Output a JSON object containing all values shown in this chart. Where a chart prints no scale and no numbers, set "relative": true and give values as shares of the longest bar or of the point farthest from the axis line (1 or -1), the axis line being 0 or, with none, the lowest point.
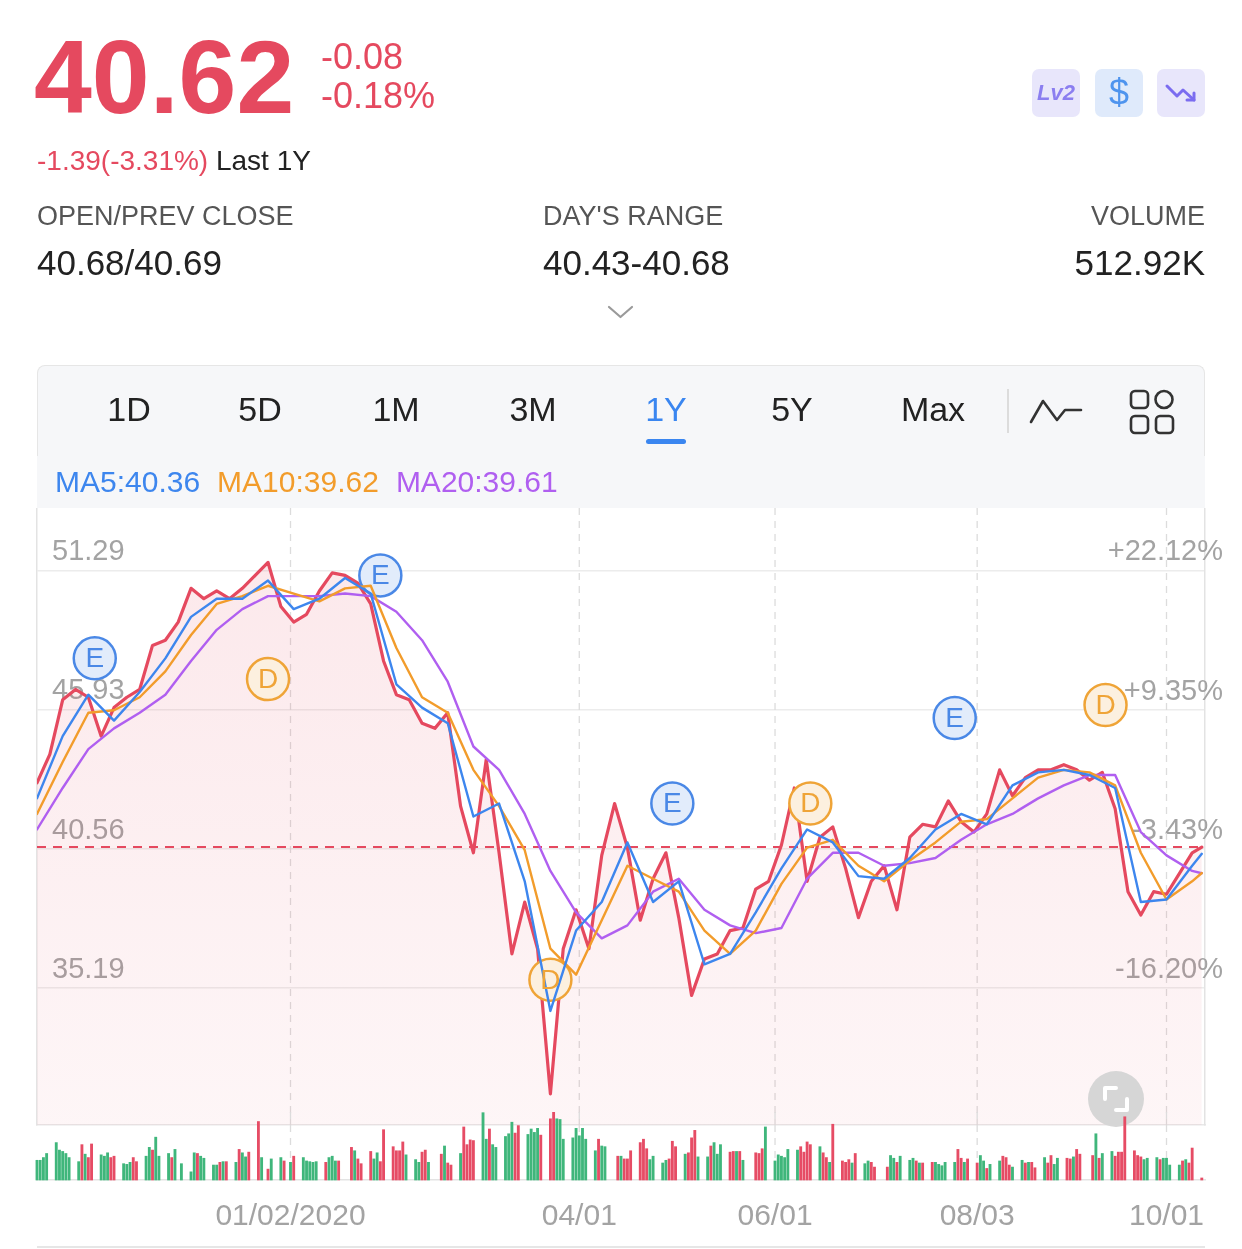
{
  "chart_data": [
    {
      "type": "other",
      "title": "40.62",
      "annotations": [
        "-0.08",
        "-0.18%",
        "-1.39(-3.31%)",
        "Last 1Y",
        "Lv2",
        "$",
        "OPEN/PREV CLOSE",
        "40.68/40.69",
        "DAY'S RANGE",
        "40.43-40.68",
        "VOLUME",
        "512.92K",
        "1D",
        "5D",
        "1M",
        "3M",
        "1Y",
        "5Y",
        "Max"
      ]
    },
    {
      "type": "line",
      "legend": "top left",
      "grid": true,
      "xlim": [
        "2019-10-15",
        "2020-10-13"
      ],
      "xticks": [
        {
          "value": "2020-01-02",
          "label": "01/02/2020"
        },
        {
          "value": "2020-04-01",
          "label": "04/01"
        },
        {
          "value": "2020-06-01",
          "label": "06/01"
        },
        {
          "value": "2020-08-03",
          "label": "08/03"
        },
        {
          "value": "2020-10-01",
          "label": "10/01"
        }
      ],
      "ylim": [
        29.9,
        53.7
      ],
      "yticks": [
        35.19,
        40.56,
        45.93,
        51.29
      ],
      "y2lim": [
        -28.81,
        27.86
      ],
      "y2ticks": [
        {
          "value": -16.2,
          "label": "-16.20%"
        },
        {
          "value": -3.43,
          "label": "-3.43%"
        },
        {
          "value": 9.35,
          "label": "+9.35%"
        },
        {
          "value": 22.12,
          "label": "+22.12%"
        }
      ],
      "ref_lines": [
        {
          "axis": "y",
          "value": 40.62,
          "color": "#e5495f",
          "line_style": "dashed"
        }
      ],
      "x": [
        "2019-10-15",
        "2019-10-23",
        "2019-10-31",
        "2019-11-08",
        "2019-11-16",
        "2019-11-24",
        "2019-12-02",
        "2019-12-10",
        "2019-12-18",
        "2019-12-26",
        "2020-01-03",
        "2020-01-11",
        "2020-01-19",
        "2020-01-27",
        "2020-02-04",
        "2020-02-12",
        "2020-02-20",
        "2020-02-28",
        "2020-03-07",
        "2020-03-15",
        "2020-03-23",
        "2020-03-31",
        "2020-04-08",
        "2020-04-16",
        "2020-04-24",
        "2020-05-02",
        "2020-05-10",
        "2020-05-18",
        "2020-05-26",
        "2020-06-03",
        "2020-06-11",
        "2020-06-19",
        "2020-06-27",
        "2020-07-05",
        "2020-07-13",
        "2020-07-21",
        "2020-07-29",
        "2020-08-06",
        "2020-08-14",
        "2020-08-22",
        "2020-08-30",
        "2020-09-07",
        "2020-09-15",
        "2020-09-23",
        "2020-10-01",
        "2020-10-09",
        "2020-10-12"
      ],
      "series": [
        {
          "type": "area",
          "color": "#e5495f",
          "x": [
            "2019-10-15",
            "2019-10-19",
            "2019-10-23",
            "2019-10-27",
            "2019-10-31",
            "2019-11-04",
            "2019-11-08",
            "2019-11-12",
            "2019-11-16",
            "2019-11-20",
            "2019-11-24",
            "2019-11-28",
            "2019-12-02",
            "2019-12-06",
            "2019-12-10",
            "2019-12-14",
            "2019-12-18",
            "2019-12-22",
            "2019-12-26",
            "2019-12-30",
            "2020-01-03",
            "2020-01-07",
            "2020-01-11",
            "2020-01-15",
            "2020-01-19",
            "2020-01-23",
            "2020-01-27",
            "2020-01-31",
            "2020-02-04",
            "2020-02-08",
            "2020-02-12",
            "2020-02-16",
            "2020-02-20",
            "2020-02-24",
            "2020-02-28",
            "2020-03-03",
            "2020-03-07",
            "2020-03-11",
            "2020-03-15",
            "2020-03-19",
            "2020-03-23",
            "2020-03-27",
            "2020-03-31",
            "2020-04-04",
            "2020-04-08",
            "2020-04-12",
            "2020-04-16",
            "2020-04-20",
            "2020-04-24",
            "2020-04-28",
            "2020-05-02",
            "2020-05-06",
            "2020-05-10",
            "2020-05-14",
            "2020-05-18",
            "2020-05-22",
            "2020-05-26",
            "2020-05-30",
            "2020-06-03",
            "2020-06-07",
            "2020-06-11",
            "2020-06-15",
            "2020-06-19",
            "2020-06-23",
            "2020-06-27",
            "2020-07-01",
            "2020-07-05",
            "2020-07-09",
            "2020-07-13",
            "2020-07-17",
            "2020-07-21",
            "2020-07-25",
            "2020-07-29",
            "2020-08-02",
            "2020-08-06",
            "2020-08-10",
            "2020-08-14",
            "2020-08-18",
            "2020-08-22",
            "2020-08-26",
            "2020-08-30",
            "2020-09-03",
            "2020-09-07",
            "2020-09-11",
            "2020-09-15",
            "2020-09-19",
            "2020-09-23",
            "2020-09-27",
            "2020-10-01",
            "2020-10-05",
            "2020-10-09",
            "2020-10-12"
          ],
          "values": [
            43.1,
            44.2,
            46.3,
            46.7,
            46.4,
            44.9,
            46.0,
            46.4,
            46.7,
            48.4,
            48.6,
            49.3,
            50.6,
            50.2,
            50.5,
            50.2,
            50.6,
            51.1,
            51.6,
            49.9,
            49.3,
            49.6,
            50.5,
            51.2,
            51.1,
            50.8,
            50.0,
            47.8,
            46.5,
            46.3,
            45.4,
            45.2,
            45.8,
            42.2,
            40.4,
            44.0,
            40.4,
            36.5,
            38.5,
            36.7,
            31.1,
            36.7,
            38.2,
            36.7,
            40.3,
            42.3,
            40.6,
            37.8,
            39.4,
            40.4,
            37.9,
            34.9,
            36.3,
            36.5,
            37.4,
            37.5,
            39.0,
            39.3,
            40.7,
            42.9,
            39.3,
            41.0,
            41.4,
            39.8,
            37.9,
            39.3,
            39.9,
            38.2,
            41.0,
            41.5,
            41.4,
            42.4,
            41.6,
            41.2,
            41.9,
            43.6,
            42.6,
            43.3,
            43.6,
            43.6,
            43.8,
            43.6,
            43.2,
            43.5,
            42.1,
            38.9,
            38.0,
            38.9,
            38.8,
            39.6,
            40.4,
            40.62
          ]
        },
        {
          "type": "line",
          "name": "MA5:40.36",
          "color": "#3d86ee",
          "values": [
            42.5,
            44.9,
            46.5,
            45.5,
            46.6,
            47.9,
            49.5,
            50.2,
            50.2,
            50.9,
            49.8,
            50.2,
            51.0,
            50.4,
            46.9,
            46.0,
            45.4,
            41.8,
            42.3,
            39.3,
            34.3,
            37.4,
            38.5,
            40.8,
            38.5,
            39.3,
            36.1,
            36.5,
            38.1,
            39.8,
            41.3,
            40.8,
            39.5,
            39.4,
            40.2,
            41.3,
            41.9,
            41.5,
            43.0,
            43.5,
            43.6,
            43.4,
            42.9,
            38.5,
            38.6,
            39.9,
            40.36
          ]
        },
        {
          "type": "line",
          "name": "MA10:39.62",
          "color": "#f29c2b",
          "values": [
            41.9,
            43.9,
            45.8,
            45.9,
            46.4,
            47.4,
            48.8,
            50.0,
            50.3,
            50.7,
            50.4,
            50.1,
            50.6,
            50.7,
            48.3,
            46.4,
            45.8,
            43.6,
            42.2,
            40.5,
            36.7,
            35.7,
            37.8,
            39.9,
            39.4,
            38.9,
            37.4,
            36.5,
            37.4,
            39.2,
            40.6,
            40.9,
            39.9,
            39.3,
            40.1,
            40.8,
            41.6,
            41.7,
            42.5,
            43.3,
            43.6,
            43.5,
            43.0,
            40.4,
            38.6,
            39.3,
            39.62
          ]
        },
        {
          "type": "line",
          "name": "MA20:39.61",
          "color": "#b05ff0",
          "values": [
            41.3,
            42.9,
            44.4,
            45.2,
            45.8,
            46.5,
            47.8,
            49.0,
            49.8,
            50.3,
            50.3,
            50.3,
            50.4,
            50.3,
            49.7,
            48.6,
            47.0,
            44.5,
            43.6,
            41.9,
            39.7,
            38.1,
            37.1,
            37.6,
            38.9,
            39.4,
            38.2,
            37.6,
            37.3,
            37.5,
            39.4,
            40.4,
            40.4,
            39.9,
            40.0,
            40.2,
            40.9,
            41.5,
            41.9,
            42.5,
            43.0,
            43.4,
            43.4,
            41.2,
            40.3,
            39.7,
            39.61
          ]
        },
        {
          "type": "scatter",
          "marker": "circle",
          "color": "#4a88e6",
          "x": [
            "2019-11-02",
            "2020-01-30",
            "2020-04-30",
            "2020-07-27"
          ],
          "values": [
            47.9,
            51.1,
            42.3,
            45.6
          ],
          "value_labels": [
            "E",
            "E",
            "E",
            "E"
          ]
        },
        {
          "type": "scatter",
          "marker": "circle",
          "color": "#efa437",
          "x": [
            "2019-12-26",
            "2020-03-23",
            "2020-06-12",
            "2020-09-12"
          ],
          "values": [
            47.1,
            35.5,
            42.3,
            46.1
          ],
          "value_labels": [
            "D",
            "D",
            "D",
            "D"
          ]
        }
      ]
    },
    {
      "type": "bar",
      "relative": true,
      "tick_labels": false,
      "grid": "x",
      "xlim": [
        "2019-10-15",
        "2020-10-13"
      ],
      "xticks": [
        {
          "value": "2020-01-02",
          "label": null
        },
        {
          "value": "2020-04-01",
          "label": null
        },
        {
          "value": "2020-06-01",
          "label": null
        },
        {
          "value": "2020-08-03",
          "label": null
        },
        {
          "value": "2020-10-01",
          "label": null
        }
      ],
      "x": [
        "2019-10-15",
        "2019-10-16",
        "2019-10-17",
        "2019-10-18",
        "2019-10-21",
        "2019-10-22",
        "2019-10-23",
        "2019-10-24",
        "2019-10-25",
        "2019-10-28",
        "2019-10-29",
        "2019-10-30",
        "2019-10-31",
        "2019-11-01",
        "2019-11-04",
        "2019-11-05",
        "2019-11-06",
        "2019-11-07",
        "2019-11-08",
        "2019-11-11",
        "2019-11-12",
        "2019-11-13",
        "2019-11-14",
        "2019-11-15",
        "2019-11-18",
        "2019-11-19",
        "2019-11-20",
        "2019-11-21",
        "2019-11-22",
        "2019-11-25",
        "2019-11-26",
        "2019-11-27",
        "2019-11-29",
        "2019-12-02",
        "2019-12-03",
        "2019-12-04",
        "2019-12-05",
        "2019-12-06",
        "2019-12-09",
        "2019-12-10",
        "2019-12-11",
        "2019-12-12",
        "2019-12-13",
        "2019-12-16",
        "2019-12-17",
        "2019-12-18",
        "2019-12-19",
        "2019-12-20",
        "2019-12-23",
        "2019-12-24",
        "2019-12-26",
        "2019-12-27",
        "2019-12-30",
        "2019-12-31",
        "2020-01-02",
        "2020-01-03",
        "2020-01-06",
        "2020-01-07",
        "2020-01-08",
        "2020-01-09",
        "2020-01-10",
        "2020-01-13",
        "2020-01-14",
        "2020-01-15",
        "2020-01-16",
        "2020-01-17",
        "2020-01-21",
        "2020-01-22",
        "2020-01-23",
        "2020-01-24",
        "2020-01-27",
        "2020-01-28",
        "2020-01-29",
        "2020-01-30",
        "2020-01-31",
        "2020-02-03",
        "2020-02-04",
        "2020-02-05",
        "2020-02-06",
        "2020-02-07",
        "2020-02-10",
        "2020-02-11",
        "2020-02-12",
        "2020-02-13",
        "2020-02-14",
        "2020-02-18",
        "2020-02-19",
        "2020-02-20",
        "2020-02-21",
        "2020-02-24",
        "2020-02-25",
        "2020-02-26",
        "2020-02-27",
        "2020-02-28",
        "2020-03-02",
        "2020-03-03",
        "2020-03-04",
        "2020-03-05",
        "2020-03-06",
        "2020-03-09",
        "2020-03-10",
        "2020-03-11",
        "2020-03-12",
        "2020-03-13",
        "2020-03-16",
        "2020-03-17",
        "2020-03-18",
        "2020-03-19",
        "2020-03-20",
        "2020-03-23",
        "2020-03-24",
        "2020-03-25",
        "2020-03-26",
        "2020-03-27",
        "2020-03-30",
        "2020-03-31",
        "2020-04-01",
        "2020-04-02",
        "2020-04-03",
        "2020-04-06",
        "2020-04-07",
        "2020-04-08",
        "2020-04-09",
        "2020-04-13",
        "2020-04-14",
        "2020-04-15",
        "2020-04-16",
        "2020-04-17",
        "2020-04-20",
        "2020-04-21",
        "2020-04-22",
        "2020-04-23",
        "2020-04-24",
        "2020-04-27",
        "2020-04-28",
        "2020-04-29",
        "2020-04-30",
        "2020-05-01",
        "2020-05-04",
        "2020-05-05",
        "2020-05-06",
        "2020-05-07",
        "2020-05-08",
        "2020-05-11",
        "2020-05-12",
        "2020-05-13",
        "2020-05-14",
        "2020-05-15",
        "2020-05-18",
        "2020-05-19",
        "2020-05-20",
        "2020-05-21",
        "2020-05-22",
        "2020-05-26",
        "2020-05-27",
        "2020-05-28",
        "2020-05-29",
        "2020-06-01",
        "2020-06-02",
        "2020-06-03",
        "2020-06-04",
        "2020-06-05",
        "2020-06-08",
        "2020-06-09",
        "2020-06-10",
        "2020-06-11",
        "2020-06-12",
        "2020-06-15",
        "2020-06-16",
        "2020-06-17",
        "2020-06-18",
        "2020-06-19",
        "2020-06-22",
        "2020-06-23",
        "2020-06-24",
        "2020-06-25",
        "2020-06-26",
        "2020-06-29",
        "2020-06-30",
        "2020-07-01",
        "2020-07-02",
        "2020-07-06",
        "2020-07-07",
        "2020-07-08",
        "2020-07-09",
        "2020-07-10",
        "2020-07-13",
        "2020-07-14",
        "2020-07-15",
        "2020-07-16",
        "2020-07-17",
        "2020-07-20",
        "2020-07-21",
        "2020-07-22",
        "2020-07-23",
        "2020-07-24",
        "2020-07-27",
        "2020-07-28",
        "2020-07-29",
        "2020-07-30",
        "2020-07-31",
        "2020-08-03",
        "2020-08-04",
        "2020-08-05",
        "2020-08-06",
        "2020-08-07",
        "2020-08-10",
        "2020-08-11",
        "2020-08-12",
        "2020-08-13",
        "2020-08-14",
        "2020-08-17",
        "2020-08-18",
        "2020-08-19",
        "2020-08-20",
        "2020-08-21",
        "2020-08-24",
        "2020-08-25",
        "2020-08-26",
        "2020-08-27",
        "2020-08-28",
        "2020-08-31",
        "2020-09-01",
        "2020-09-02",
        "2020-09-03",
        "2020-09-04",
        "2020-09-08",
        "2020-09-09",
        "2020-09-10",
        "2020-09-11",
        "2020-09-14",
        "2020-09-15",
        "2020-09-16",
        "2020-09-17",
        "2020-09-18",
        "2020-09-21",
        "2020-09-22",
        "2020-09-23",
        "2020-09-24",
        "2020-09-25",
        "2020-09-28",
        "2020-09-29",
        "2020-09-30",
        "2020-10-01",
        "2020-10-02",
        "2020-10-05",
        "2020-10-06",
        "2020-10-07",
        "2020-10-08",
        "2020-10-09",
        "2020-10-12"
      ],
      "values": [
        0.29,
        0.29,
        0.33,
        0.39,
        0.55,
        0.44,
        0.42,
        0.39,
        0.33,
        0.27,
        0.52,
        0.38,
        0.33,
        0.53,
        0.37,
        0.35,
        0.4,
        0.33,
        0.35,
        0.24,
        0.23,
        0.26,
        0.33,
        0.27,
        0.35,
        0.48,
        0.44,
        0.63,
        0.35,
        0.39,
        0.33,
        0.45,
        0.24,
        0.12,
        0.4,
        0.39,
        0.35,
        0.32,
        0.22,
        0.22,
        0.26,
        0.27,
        0.27,
        0.26,
        0.45,
        0.4,
        0.34,
        0.41,
        0.86,
        0.33,
        0.16,
        0.31,
        0.33,
        0.28,
        0.26,
        0.35,
        0.33,
        0.28,
        0.27,
        0.26,
        0.27,
        0.26,
        0.33,
        0.35,
        0.28,
        0.28,
        0.48,
        0.43,
        0.31,
        0.24,
        0.42,
        0.31,
        0.4,
        0.27,
        0.74,
        0.49,
        0.43,
        0.43,
        0.56,
        0.37,
        0.3,
        0.26,
        0.41,
        0.44,
        0.26,
        0.38,
        0.5,
        0.25,
        0.22,
        0.39,
        0.78,
        0.52,
        0.59,
        0.58,
        0.99,
        0.6,
        0.75,
        0.52,
        0.48,
        0.64,
        0.68,
        0.85,
        0.69,
        0.8,
        0.67,
        0.75,
        0.7,
        0.76,
        0.66,
        0.9,
        1,
        0.9,
        0.89,
        0.6,
        0.62,
        0.76,
        0.65,
        0.76,
        0.6,
        0.43,
        0.6,
        0.5,
        0.49,
        0.35,
        0.35,
        0.31,
        0.31,
        0.43,
        0.55,
        0.6,
        0.46,
        0.3,
        0.35,
        0.25,
        0.29,
        0.31,
        0.57,
        0.49,
        0.38,
        0.4,
        0.62,
        0.73,
        0.34,
        0.34,
        0.5,
        0.55,
        0.38,
        0.52,
        0.41,
        0.42,
        0.42,
        0.42,
        0.29,
        0.4,
        0.39,
        0.46,
        0.78,
        0.28,
        0.37,
        0.35,
        0.33,
        0.45,
        0.44,
        0.49,
        0.41,
        0.56,
        0.52,
        0.49,
        0.4,
        0.33,
        0.26,
        0.82,
        0.28,
        0.26,
        0.3,
        0.25,
        0.39,
        0.24,
        0.28,
        0.26,
        0.19,
        0.19,
        0.36,
        0.32,
        0.26,
        0.35,
        0.29,
        0.32,
        0.28,
        0.25,
        0.25,
        0.26,
        0.26,
        0.23,
        0.21,
        0.26,
        0.26,
        0.45,
        0.32,
        0.26,
        0.31,
        0.25,
        0.36,
        0.28,
        0.17,
        0.23,
        0.28,
        0.35,
        0.33,
        0.22,
        0.19,
        0.29,
        0.25,
        0.26,
        0.26,
        0.18,
        0.33,
        0.25,
        0.36,
        0.23,
        0.32,
        0.32,
        0.31,
        0.34,
        0.45,
        0.38,
        0.36,
        0.68,
        0.32,
        0.39,
        0.42,
        0.35,
        0.41,
        0.41,
        0.93,
        0.43,
        0.36,
        0.34,
        0.3,
        0.32,
        0.33,
        0.3,
        0.32,
        0.32,
        0.22,
        0.22,
        0.28,
        0.3,
        0.25,
        0.47,
        0.03
      ],
      "colors": [
        "#3fb67b",
        "#3fb67b",
        "#3fb67b",
        "#3fb67b",
        "#3fb67b",
        "#3fb67b",
        "#3fb67b",
        "#3fb67b",
        "#3fb67b",
        "#3fb67b",
        "#e64c65",
        "#3fb67b",
        "#e64c65",
        "#e64c65",
        "#3fb67b",
        "#3fb67b",
        "#3fb67b",
        "#e64c65",
        "#e64c65",
        "#3fb67b",
        "#3fb67b",
        "#3fb67b",
        "#e64c65",
        "#e64c65",
        "#3fb67b",
        "#3fb67b",
        "#e64c65",
        "#3fb67b",
        "#3fb67b",
        "#3fb67b",
        "#e64c65",
        "#3fb67b",
        "#3fb67b",
        "#3fb67b",
        "#3fb67b",
        "#e64c65",
        "#3fb67b",
        "#3fb67b",
        "#3fb67b",
        "#3fb67b",
        "#e64c65",
        "#3fb67b",
        "#e64c65",
        "#3fb67b",
        "#e64c65",
        "#3fb67b",
        "#3fb67b",
        "#e64c65",
        "#e64c65",
        "#3fb67b",
        "#e64c65",
        "#3fb67b",
        "#3fb67b",
        "#e64c65",
        "#3fb67b",
        "#e64c65",
        "#3fb67b",
        "#3fb67b",
        "#3fb67b",
        "#3fb67b",
        "#3fb67b",
        "#e64c65",
        "#3fb67b",
        "#3fb67b",
        "#3fb67b",
        "#e64c65",
        "#e64c65",
        "#3fb67b",
        "#e64c65",
        "#e64c65",
        "#e64c65",
        "#3fb67b",
        "#3fb67b",
        "#e64c65",
        "#e64c65",
        "#e64c65",
        "#e64c65",
        "#e64c65",
        "#e64c65",
        "#3fb67b",
        "#3fb67b",
        "#3fb67b",
        "#e64c65",
        "#e64c65",
        "#3fb67b",
        "#e64c65",
        "#3fb67b",
        "#e64c65",
        "#e64c65",
        "#3fb67b",
        "#e64c65",
        "#e64c65",
        "#e64c65",
        "#e64c65",
        "#3fb67b",
        "#3fb67b",
        "#e64c65",
        "#3fb67b",
        "#3fb67b",
        "#3fb67b",
        "#3fb67b",
        "#3fb67b",
        "#e64c65",
        "#e64c65",
        "#3fb67b",
        "#3fb67b",
        "#3fb67b",
        "#3fb67b",
        "#e64c65",
        "#e64c65",
        "#e64c65",
        "#3fb67b",
        "#3fb67b",
        "#3fb67b",
        "#3fb67b",
        "#3fb67b",
        "#3fb67b",
        "#3fb67b",
        "#3fb67b",
        "#3fb67b",
        "#e64c65",
        "#3fb67b",
        "#3fb67b",
        "#e64c65",
        "#3fb67b",
        "#e64c65",
        "#e64c65",
        "#e64c65",
        "#e64c65",
        "#e64c65",
        "#e64c65",
        "#3fb67b",
        "#3fb67b",
        "#3fb67b",
        "#3fb67b",
        "#e64c65",
        "#e64c65",
        "#e64c65",
        "#3fb67b",
        "#e64c65",
        "#e64c65",
        "#e64c65",
        "#3fb67b",
        "#3fb67b",
        "#e64c65",
        "#3fb67b",
        "#3fb67b",
        "#3fb67b",
        "#e64c65",
        "#e64c65",
        "#3fb67b",
        "#e64c65",
        "#3fb67b",
        "#e64c65",
        "#e64c65",
        "#e64c65",
        "#3fb67b",
        "#3fb67b",
        "#3fb67b",
        "#3fb67b",
        "#3fb67b",
        "#3fb67b",
        "#3fb67b",
        "#e64c65",
        "#e64c65",
        "#e64c65",
        "#e64c65",
        "#3fb67b",
        "#e64c65",
        "#e64c65",
        "#3fb67b",
        "#e64c65",
        "#e64c65",
        "#e64c65",
        "#e64c65",
        "#3fb67b",
        "#e64c65",
        "#3fb67b",
        "#3fb67b",
        "#e64c65",
        "#e64c65",
        "#e64c65",
        "#3fb67b",
        "#3fb67b",
        "#e64c65",
        "#3fb67b",
        "#3fb67b",
        "#3fb67b",
        "#e64c65",
        "#3fb67b",
        "#e64c65",
        "#e64c65",
        "#3fb67b",
        "#3fb67b",
        "#3fb67b",
        "#3fb67b",
        "#3fb67b",
        "#e64c65",
        "#e64c65",
        "#3fb67b",
        "#e64c65",
        "#e64c65",
        "#3fb67b",
        "#3fb67b",
        "#e64c65",
        "#3fb67b",
        "#3fb67b",
        "#e64c65",
        "#e64c65",
        "#e64c65",
        "#3fb67b",
        "#3fb67b",
        "#e64c65",
        "#3fb67b",
        "#e64c65",
        "#e64c65",
        "#3fb67b",
        "#e64c65",
        "#e64c65",
        "#3fb67b",
        "#3fb67b",
        "#e64c65",
        "#e64c65",
        "#3fb67b",
        "#e64c65",
        "#e64c65",
        "#e64c65",
        "#3fb67b",
        "#e64c65",
        "#3fb67b",
        "#3fb67b",
        "#e64c65",
        "#e64c65",
        "#e64c65",
        "#e64c65",
        "#e64c65",
        "#e64c65",
        "#e64c65",
        "#3fb67b",
        "#3fb67b",
        "#3fb67b",
        "#e64c65",
        "#3fb67b",
        "#3fb67b",
        "#3fb67b",
        "#3fb67b",
        "#e64c65",
        "#3fb67b",
        "#e64c65",
        "#e64c65",
        "#e64c65"
      ]
    }
  ]
}
